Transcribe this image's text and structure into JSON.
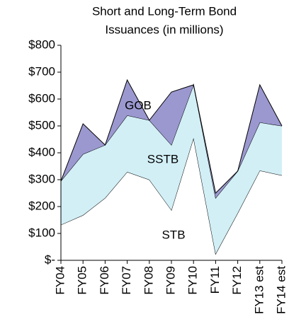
{
  "chart_data": {
    "type": "stacked_area",
    "title": [
      "Short and Long-Term Bond",
      "Issuances (in millions)"
    ],
    "categories": [
      "FY04",
      "FY05",
      "FY06",
      "FY07",
      "FY08",
      "FY09",
      "FY10",
      "FY11",
      "FY12",
      "FY13 est",
      "FY14 est"
    ],
    "series": [
      {
        "name": "STB",
        "color": "#ffffff",
        "values": [
          132,
          168,
          232,
          329,
          300,
          187,
          455,
          24,
          176,
          334,
          316
        ]
      },
      {
        "name": "SSTB",
        "color": "#d2eff6",
        "values": [
          163,
          227,
          197,
          210,
          221,
          242,
          198,
          208,
          156,
          179,
          184
        ]
      },
      {
        "name": "GOB",
        "color": "#9b98d0",
        "values": [
          0,
          113,
          0,
          132,
          0,
          197,
          0,
          18,
          0,
          140,
          0
        ]
      }
    ],
    "ylim": [
      0,
      800
    ],
    "yticks": [
      {
        "value": 0,
        "label": "$-"
      },
      {
        "value": 100,
        "label": "$100"
      },
      {
        "value": 200,
        "label": "$200"
      },
      {
        "value": 300,
        "label": "$300"
      },
      {
        "value": 400,
        "label": "$400"
      },
      {
        "value": 500,
        "label": "$500"
      },
      {
        "value": 600,
        "label": "$600"
      },
      {
        "value": 700,
        "label": "$700"
      },
      {
        "value": 800,
        "label": "$800"
      }
    ],
    "grid": false
  }
}
